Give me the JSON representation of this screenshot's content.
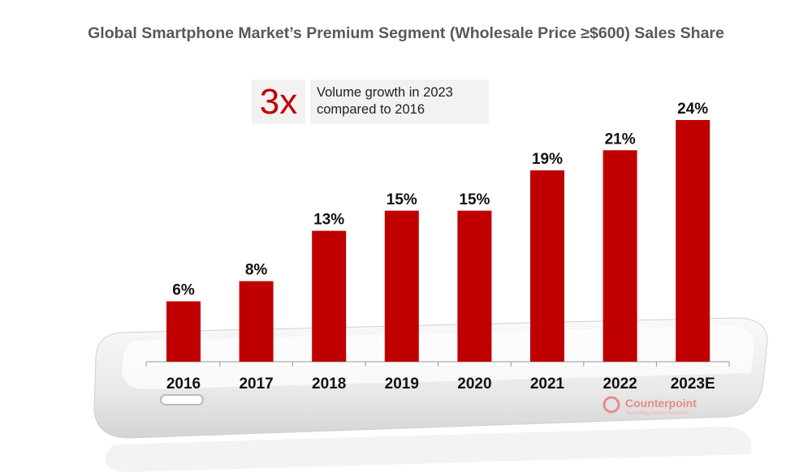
{
  "chart_data": {
    "type": "bar",
    "title": "Global Smartphone Market’s Premium Segment (Wholesale Price ≥$600) Sales Share",
    "categories": [
      "2016",
      "2017",
      "2018",
      "2019",
      "2020",
      "2021",
      "2022",
      "2023E"
    ],
    "values": [
      6,
      8,
      13,
      15,
      15,
      19,
      21,
      24
    ],
    "data_labels": [
      "6%",
      "8%",
      "13%",
      "15%",
      "15%",
      "19%",
      "21%",
      "24%"
    ],
    "unit": "%",
    "ylim": [
      0,
      24
    ],
    "grid": false,
    "bar_color": "#c00000",
    "annotation": {
      "big": "3x",
      "text_line1": "Volume growth in 2023",
      "text_line2": "compared to 2016"
    }
  },
  "watermark": {
    "brand": "Counterpoint",
    "tagline": "Technology Market Research",
    "color": "#e88a8a"
  }
}
